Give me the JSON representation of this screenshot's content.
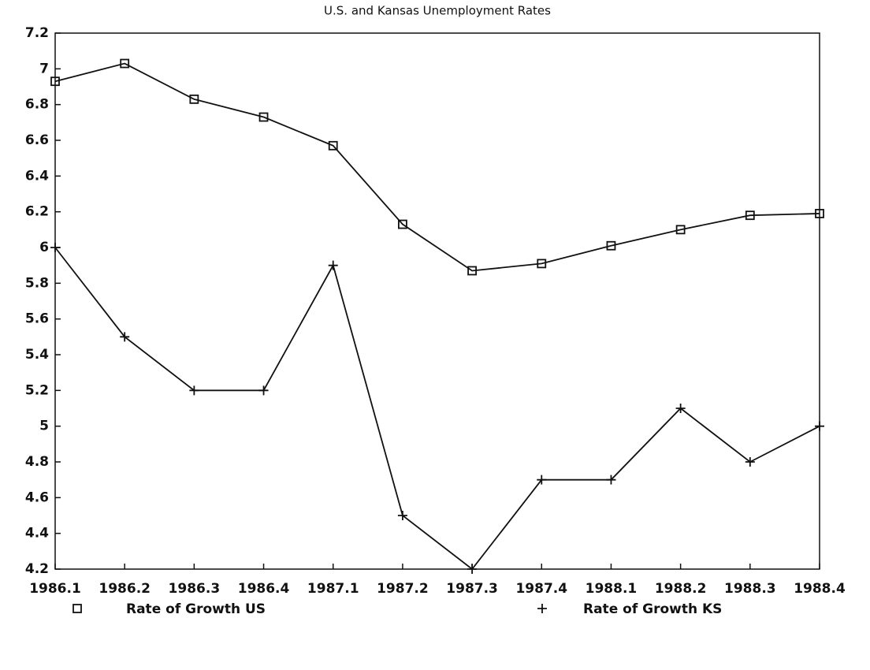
{
  "chart_data": {
    "type": "line",
    "title": "U.S. and Kansas Unemployment Rates",
    "categories": [
      "1986.1",
      "1986.2",
      "1986.3",
      "1986.4",
      "1987.1",
      "1987.2",
      "1987.3",
      "1987.4",
      "1988.1",
      "1988.2",
      "1988.3",
      "1988.4"
    ],
    "series": [
      {
        "name": "Rate of Growth US",
        "color": "#111111",
        "marker": "square",
        "values": [
          6.93,
          7.03,
          6.83,
          6.73,
          6.57,
          6.13,
          5.87,
          5.91,
          6.01,
          6.1,
          6.18,
          6.19
        ]
      },
      {
        "name": "Rate of Growth KS",
        "color": "#111111",
        "marker": "plus",
        "values": [
          6.0,
          5.5,
          5.2,
          5.2,
          5.9,
          4.5,
          4.2,
          4.7,
          4.7,
          5.1,
          4.8,
          5.0
        ]
      }
    ],
    "ylim": [
      4.2,
      7.2
    ],
    "yticks": [
      4.2,
      4.4,
      4.6,
      4.8,
      5,
      5.2,
      5.4,
      5.6,
      5.8,
      6,
      6.2,
      6.4,
      6.6,
      6.8,
      7,
      7.2
    ],
    "grid": false
  }
}
